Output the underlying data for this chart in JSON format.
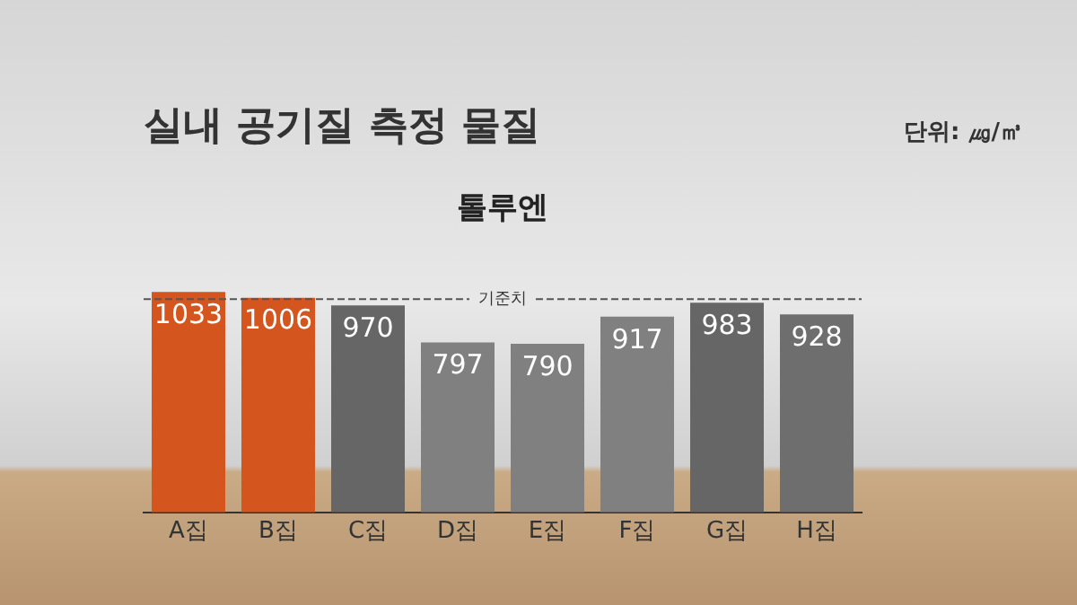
{
  "chart_data": {
    "type": "bar",
    "title": "실내 공기질 측정 물질",
    "subtitle": "톨루엔",
    "annotations": [
      "단위: ㎍/㎥"
    ],
    "categories": [
      "A집",
      "B집",
      "C집",
      "D집",
      "E집",
      "F집",
      "G집",
      "H집"
    ],
    "values": [
      1033,
      1006,
      970,
      797,
      790,
      917,
      983,
      928
    ],
    "colors": [
      "#d4561e",
      "#d4561e",
      "#666666",
      "#808080",
      "#808080",
      "#808080",
      "#666666",
      "#6e6e6e"
    ],
    "ref_lines": [
      {
        "axis": "y",
        "value": 1000,
        "label": "기준치",
        "line_style": "dashed",
        "color": "#555555"
      }
    ],
    "data_labels": true,
    "grid": false,
    "legend": false
  }
}
